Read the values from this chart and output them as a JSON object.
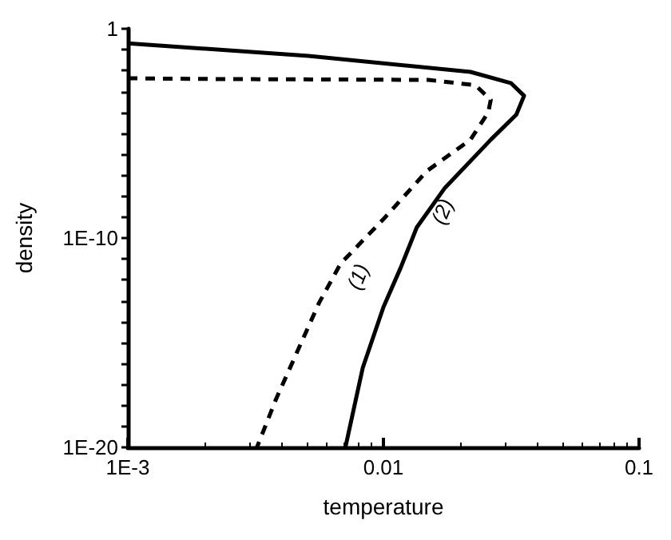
{
  "chart_data": {
    "type": "line",
    "xlabel": "temperature",
    "ylabel": "density",
    "log": "xy",
    "grid": false,
    "marker": "none",
    "xlim": [
      0.001,
      0.1
    ],
    "ylim": [
      1e-20,
      1
    ],
    "xticks": [
      {
        "value": 0.001,
        "label": "1E-3"
      },
      0.01,
      0.1
    ],
    "yticks": [
      {
        "value": 1e-20,
        "label": "1E-20"
      },
      {
        "value": 1e-19,
        "label": null
      },
      {
        "value": 1e-18,
        "label": null
      },
      {
        "value": 1e-17,
        "label": null
      },
      {
        "value": 1e-16,
        "label": null
      },
      {
        "value": 1e-15,
        "label": null
      },
      {
        "value": 1e-14,
        "label": null
      },
      {
        "value": 1e-13,
        "label": null
      },
      {
        "value": 1e-12,
        "label": null
      },
      {
        "value": 1e-11,
        "label": null
      },
      {
        "value": 1e-10,
        "label": "1E-10"
      },
      {
        "value": 1e-09,
        "label": null
      },
      {
        "value": 1e-08,
        "label": null
      },
      {
        "value": 1e-07,
        "label": null
      },
      {
        "value": 1e-06,
        "label": null
      },
      {
        "value": 1e-05,
        "label": null
      },
      {
        "value": 0.0001,
        "label": null
      },
      {
        "value": 0.001,
        "label": null
      },
      {
        "value": 0.01,
        "label": null
      },
      {
        "value": 0.1,
        "label": null
      },
      1
    ],
    "series": [
      {
        "name": "(1)",
        "color": "#000000",
        "line_style": "dashed",
        "x": [
          0.001,
          0.0019,
          0.0052,
          0.015,
          0.0229,
          0.0263,
          0.0257,
          0.0219,
          0.0148,
          0.01,
          0.0068,
          0.0056,
          0.0038,
          0.0032
        ],
        "values": [
          0.0043,
          0.004,
          0.0038,
          0.0036,
          0.002,
          0.0004,
          0.0001,
          5e-06,
          1.6e-07,
          8e-10,
          6e-12,
          8e-14,
          2e-18,
          1e-20
        ]
      },
      {
        "name": "(2)",
        "color": "#000000",
        "line_style": "solid",
        "x": [
          0.001,
          0.0051,
          0.0219,
          0.0316,
          0.0355,
          0.0331,
          0.0263,
          0.0174,
          0.0135,
          0.0117,
          0.01,
          0.0083,
          0.0071
        ],
        "values": [
          0.2,
          0.05,
          0.0087,
          0.0025,
          0.00063,
          7.9e-05,
          5e-06,
          2.5e-08,
          3.2e-10,
          4e-12,
          5e-14,
          6.3e-17,
          1e-20
        ]
      }
    ]
  }
}
